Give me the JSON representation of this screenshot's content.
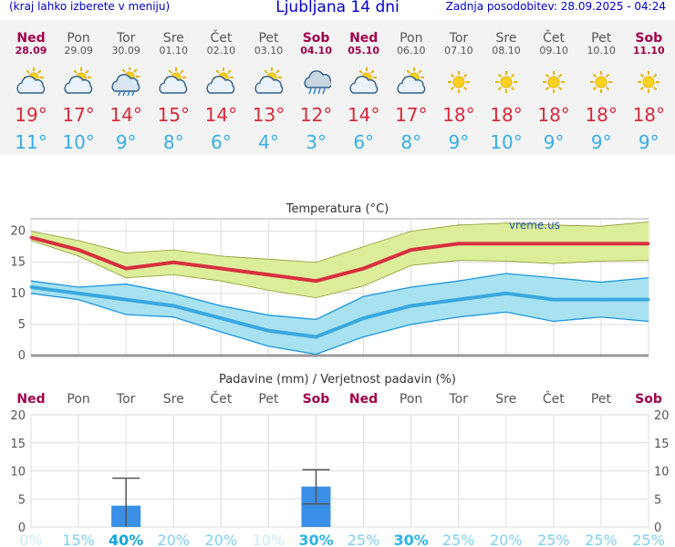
{
  "header": {
    "left_note": "(kraj lahko izberete v meniju)",
    "title": "Ljubljana 14 dni",
    "updated": "Zadnja posodobitev: 28.09.2025 - 04:24"
  },
  "days": [
    {
      "name": "Ned",
      "date": "28.09",
      "weekend": true,
      "icon": "partly-cloudy-icon",
      "tmax": "19°",
      "tmin": "11°"
    },
    {
      "name": "Pon",
      "date": "29.09",
      "weekend": false,
      "icon": "partly-cloudy-icon",
      "tmax": "17°",
      "tmin": "10°"
    },
    {
      "name": "Tor",
      "date": "30.09",
      "weekend": false,
      "icon": "sun-cloud-rain-icon",
      "tmax": "14°",
      "tmin": "9°"
    },
    {
      "name": "Sre",
      "date": "01.10",
      "weekend": false,
      "icon": "partly-cloudy-icon",
      "tmax": "15°",
      "tmin": "8°"
    },
    {
      "name": "Čet",
      "date": "02.10",
      "weekend": false,
      "icon": "partly-cloudy-icon",
      "tmax": "14°",
      "tmin": "6°"
    },
    {
      "name": "Pet",
      "date": "03.10",
      "weekend": false,
      "icon": "partly-cloudy-icon",
      "tmax": "13°",
      "tmin": "4°"
    },
    {
      "name": "Sob",
      "date": "04.10",
      "weekend": true,
      "icon": "cloud-rain-icon",
      "tmax": "12°",
      "tmin": "3°"
    },
    {
      "name": "Ned",
      "date": "05.10",
      "weekend": true,
      "icon": "partly-cloudy-icon",
      "tmax": "14°",
      "tmin": "6°"
    },
    {
      "name": "Pon",
      "date": "06.10",
      "weekend": false,
      "icon": "partly-cloudy-icon",
      "tmax": "17°",
      "tmin": "8°"
    },
    {
      "name": "Tor",
      "date": "07.10",
      "weekend": false,
      "icon": "sun-icon",
      "tmax": "18°",
      "tmin": "9°"
    },
    {
      "name": "Sre",
      "date": "08.10",
      "weekend": false,
      "icon": "sun-icon",
      "tmax": "18°",
      "tmin": "10°"
    },
    {
      "name": "Čet",
      "date": "09.10",
      "weekend": false,
      "icon": "sun-icon",
      "tmax": "18°",
      "tmin": "9°"
    },
    {
      "name": "Pet",
      "date": "10.10",
      "weekend": false,
      "icon": "sun-icon",
      "tmax": "18°",
      "tmin": "9°"
    },
    {
      "name": "Sob",
      "date": "11.10",
      "weekend": true,
      "icon": "sun-icon",
      "tmax": "18°",
      "tmin": "9°"
    }
  ],
  "chart_data": [
    {
      "type": "line",
      "title": "Temperatura (°C)",
      "watermark": "vreme.us",
      "categories": [
        "Ned",
        "Pon",
        "Tor",
        "Sre",
        "Čet",
        "Pet",
        "Sob",
        "Ned",
        "Pon",
        "Tor",
        "Sre",
        "Čet",
        "Pet",
        "Sob"
      ],
      "ylim": [
        0,
        22
      ],
      "yticks": [
        0,
        5,
        10,
        15,
        20
      ],
      "grid": true,
      "series": [
        {
          "values": [
            19,
            17,
            14,
            15,
            14,
            13,
            12,
            14,
            17,
            18,
            18,
            18,
            18,
            18
          ],
          "color": "#d8303f",
          "band_low": [
            18.5,
            16,
            12.5,
            13,
            12,
            10.5,
            9.3,
            11.2,
            14.5,
            15.3,
            15.2,
            14.8,
            15.2,
            15.3
          ],
          "band_high": [
            20,
            18.5,
            16.5,
            17,
            16,
            15.5,
            15,
            17.5,
            20,
            21,
            21.3,
            21,
            20.8,
            21.5
          ],
          "band_color": "#dcee9a"
        },
        {
          "values": [
            11,
            10,
            9,
            8,
            6,
            4,
            3,
            6,
            8,
            9,
            10,
            9,
            9,
            9
          ],
          "color": "#3aa8e0",
          "band_low": [
            10,
            9,
            6.6,
            6.2,
            3.8,
            1.5,
            0.2,
            3,
            5,
            6.2,
            7,
            5.5,
            6.2,
            5.5
          ],
          "band_high": [
            12,
            11,
            11.5,
            10,
            8,
            6.5,
            5.8,
            9.5,
            11,
            12,
            13.2,
            12.5,
            11.8,
            12.5
          ],
          "band_color": "#a8e2f0"
        }
      ]
    },
    {
      "type": "bar",
      "title": "Padavine (mm) / Verjetnost padavin (%)",
      "categories": [
        "Ned",
        "Pon",
        "Tor",
        "Sre",
        "Čet",
        "Pet",
        "Sob",
        "Ned",
        "Pon",
        "Tor",
        "Sre",
        "Čet",
        "Pet",
        "Sob"
      ],
      "weekend": [
        true,
        false,
        false,
        false,
        false,
        false,
        true,
        true,
        false,
        false,
        false,
        false,
        false,
        true
      ],
      "values": [
        0,
        0,
        3.8,
        0,
        0,
        0,
        7.2,
        0,
        0,
        0,
        0,
        0,
        0,
        0
      ],
      "error_high": [
        null,
        null,
        8.7,
        null,
        null,
        null,
        10.2,
        null,
        null,
        null,
        null,
        null,
        null,
        null
      ],
      "error_low": [
        null,
        null,
        0,
        null,
        null,
        null,
        4.1,
        null,
        null,
        null,
        null,
        null,
        null,
        null
      ],
      "probability": [
        "0%",
        "15%",
        "40%",
        "20%",
        "20%",
        "10%",
        "30%",
        "25%",
        "30%",
        "25%",
        "20%",
        "25%",
        "25%",
        "25%"
      ],
      "ylim": [
        0,
        20
      ],
      "yticks": [
        0,
        5,
        10,
        15,
        20
      ],
      "bar_color": "#3a8fe6"
    }
  ]
}
